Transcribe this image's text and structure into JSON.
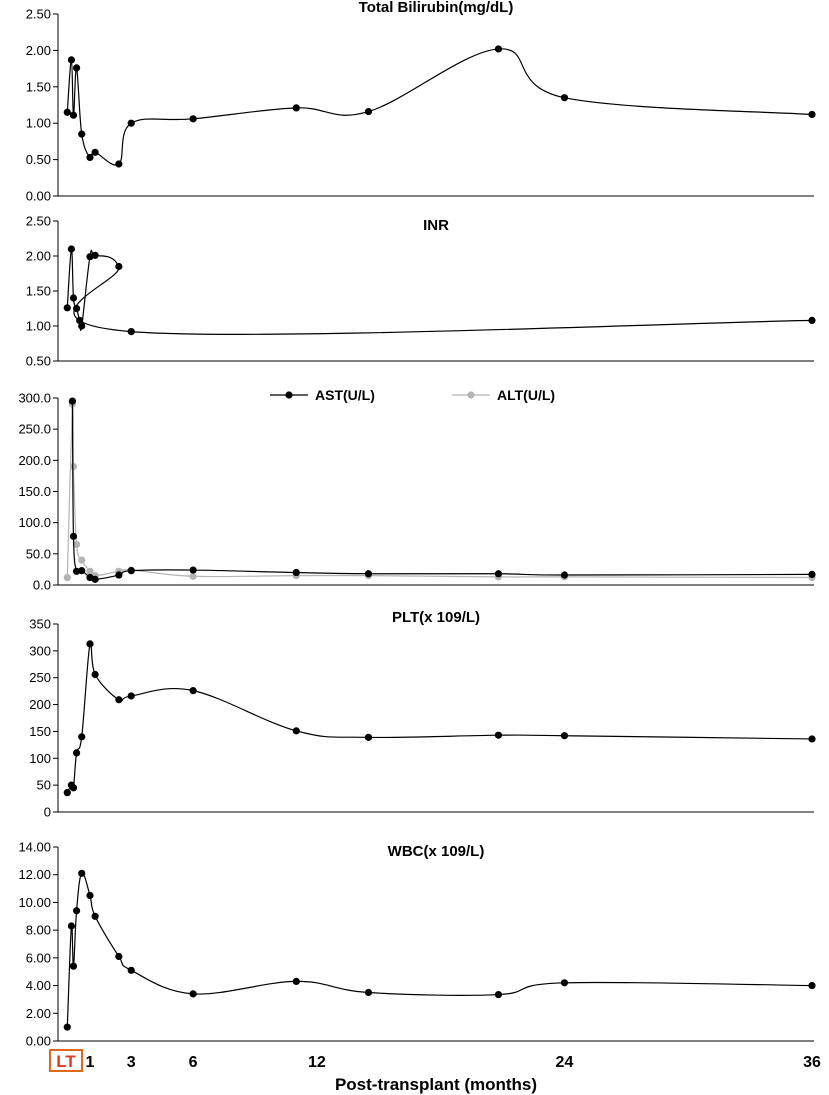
{
  "colors": {
    "primary_series": "#000000",
    "secondary_series": "#b4b4b4",
    "lt_box": "#e0681e",
    "lt_text": "#e03a1e"
  },
  "x_axis": {
    "label": "Post-transplant (months)",
    "lt_label": "LT",
    "ticks": [
      {
        "value": 1,
        "label": "1"
      },
      {
        "value": 3,
        "label": "3"
      },
      {
        "value": 6,
        "label": "6"
      },
      {
        "value": 12,
        "label": "12"
      },
      {
        "value": 24,
        "label": "24"
      },
      {
        "value": 36,
        "label": "36"
      }
    ]
  },
  "chart_data": [
    {
      "type": "line",
      "title": "Total Bilirubin(mg/dL)",
      "ylim": [
        0,
        2.5
      ],
      "yticks": [
        0,
        0.5,
        1,
        1.5,
        2,
        2.5
      ],
      "ytick_labels": [
        "0.00",
        "0.50",
        "1.00",
        "1.50",
        "2.00",
        "2.50"
      ],
      "series": [
        {
          "x": [
            -0.1,
            0.1,
            0.2,
            0.35,
            0.6,
            1.0,
            1.25,
            2.4,
            3.0,
            6.0,
            11.0,
            14.5,
            20.8,
            24.0,
            36.0
          ],
          "values": [
            1.15,
            1.87,
            1.11,
            1.76,
            0.85,
            0.53,
            0.6,
            0.44,
            1.0,
            1.06,
            1.21,
            1.16,
            2.02,
            1.35,
            1.12
          ]
        }
      ]
    },
    {
      "type": "line",
      "title": "INR",
      "ylim": [
        0.5,
        2.5
      ],
      "yticks": [
        0.5,
        1,
        1.5,
        2,
        2.5
      ],
      "ytick_labels": [
        "0.50",
        "1.00",
        "1.50",
        "2.00",
        "2.50"
      ],
      "series": [
        {
          "x": [
            -0.1,
            0.1,
            0.2,
            0.35,
            0.5,
            0.6,
            1.0,
            1.25,
            2.4,
            3.0,
            36.0
          ],
          "values": [
            1.26,
            2.1,
            1.4,
            1.25,
            1.08,
            1.0,
            1.99,
            2.01,
            1.85,
            0.92,
            1.08
          ]
        }
      ]
    },
    {
      "type": "line",
      "title": "",
      "ylim": [
        0,
        300
      ],
      "yticks": [
        0,
        50,
        100,
        150,
        200,
        250,
        300
      ],
      "ytick_labels": [
        "0.0",
        "50.0",
        "100.0",
        "150.0",
        "200.0",
        "250.0",
        "300.0"
      ],
      "legend": "top-center",
      "series": [
        {
          "name": "AST(U/L)",
          "color": "#000000",
          "x": [
            0.15,
            0.2,
            0.35,
            0.6,
            1.0,
            1.25,
            2.4,
            3.0,
            6.0,
            11.0,
            14.5,
            20.8,
            24.0,
            36.0
          ],
          "values": [
            295,
            78,
            22,
            23,
            12,
            9,
            16,
            23,
            24,
            20,
            18,
            18,
            16,
            17
          ]
        },
        {
          "name": "ALT(U/L)",
          "color": "#b4b4b4",
          "x": [
            -0.1,
            0.15,
            0.2,
            0.35,
            0.6,
            1.0,
            1.25,
            2.4,
            3.0,
            6.0,
            11.0,
            14.5,
            20.8,
            24.0,
            36.0
          ],
          "values": [
            12,
            290,
            190,
            65,
            40,
            22,
            15,
            22,
            24,
            14,
            15,
            15,
            13,
            13,
            12
          ]
        }
      ]
    },
    {
      "type": "line",
      "title": "PLT(x 109/L)",
      "ylim": [
        0,
        350
      ],
      "yticks": [
        0,
        50,
        100,
        150,
        200,
        250,
        300,
        350
      ],
      "ytick_labels": [
        "0",
        "50",
        "100",
        "150",
        "200",
        "250",
        "300",
        "350"
      ],
      "series": [
        {
          "x": [
            -0.1,
            0.1,
            0.2,
            0.35,
            0.6,
            1.0,
            1.25,
            2.4,
            3.0,
            6.0,
            11.0,
            14.5,
            20.8,
            24.0,
            36.0
          ],
          "values": [
            36,
            50,
            45,
            110,
            140,
            313,
            256,
            209,
            216,
            226,
            151,
            139,
            143,
            142,
            136
          ]
        }
      ]
    },
    {
      "type": "line",
      "title": "WBC(x 109/L)",
      "ylim": [
        0,
        14
      ],
      "yticks": [
        0,
        2,
        4,
        6,
        8,
        10,
        12,
        14
      ],
      "ytick_labels": [
        "0.00",
        "2.00",
        "4.00",
        "6.00",
        "8.00",
        "10.00",
        "12.00",
        "14.00"
      ],
      "series": [
        {
          "x": [
            -0.1,
            0.1,
            0.2,
            0.35,
            0.6,
            1.0,
            1.25,
            2.4,
            3.0,
            6.0,
            11.0,
            14.5,
            20.8,
            24.0,
            36.0
          ],
          "values": [
            1.0,
            8.3,
            5.4,
            9.4,
            12.1,
            10.5,
            9.0,
            6.1,
            5.1,
            3.4,
            4.3,
            3.5,
            3.35,
            4.2,
            4.0
          ]
        }
      ]
    }
  ]
}
